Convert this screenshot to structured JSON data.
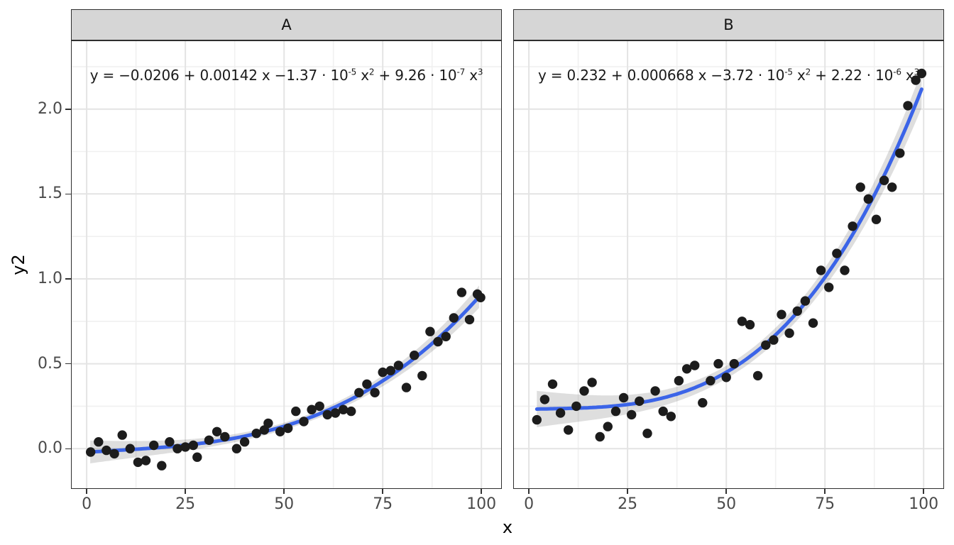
{
  "figure": {
    "background": "#FFFFFF",
    "strip_background": "#D6D6D6",
    "border_color": "#2E2E2E",
    "grid_major_color": "#E4E4E4",
    "grid_minor_color": "#F0F0F0",
    "tick_color": "#333333",
    "tick_label_color": "#4A4A4A",
    "axis_title_color": "#000000",
    "point_color": "#1C1C1C",
    "line_color": "#3B64E8",
    "ribbon_color": "rgba(0,0,0,0.13)",
    "equation_color": "#1A1A1A"
  },
  "chart_data": {
    "type": "scatter",
    "subtype": "faceted scatter with cubic polynomial fit and confidence ribbon",
    "xlabel": "x",
    "ylabel": "y2",
    "x_ticks": [
      0,
      25,
      50,
      75,
      100
    ],
    "x_minor": [
      12.5,
      37.5,
      62.5,
      87.5
    ],
    "y_ticks": [
      0,
      0.5,
      1,
      1.5,
      2
    ],
    "y_tick_labels": [
      "0.0",
      "0.5",
      "1.0",
      "1.5",
      "2.0"
    ],
    "y_minor": [
      0.25,
      0.75,
      1.25,
      1.75,
      2.25
    ],
    "x_domain": [
      -3.8,
      105.0
    ],
    "y_domain": [
      -0.233,
      2.4
    ],
    "grid": true,
    "legend": "none",
    "facets": [
      {
        "label": "A",
        "equation_text": "y = −0.0206 + 0.00142 x −1.37 · 10⁻⁵ x² + 9.26 · 10⁻⁷ x³",
        "equation_parts": [
          {
            "t": "y = −0.0206 + 0.00142 x −1.37 · 10"
          },
          {
            "s": "-5"
          },
          {
            "t": " x"
          },
          {
            "s": "2"
          },
          {
            "t": " + 9.26 · 10"
          },
          {
            "s": "-7"
          },
          {
            "t": " x"
          },
          {
            "s": "3"
          }
        ],
        "fit_coefficients": [
          -0.0206,
          0.00142,
          -1.37e-05,
          9.26e-07
        ],
        "fit_x_range": [
          0.9,
          99.8
        ],
        "ribbon": {
          "base": 0.021,
          "amp": 0.046
        },
        "points": [
          [
            1,
            -0.02
          ],
          [
            3,
            0.04
          ],
          [
            5,
            -0.01
          ],
          [
            7,
            -0.03
          ],
          [
            9,
            0.08
          ],
          [
            11,
            0.0
          ],
          [
            13,
            -0.08
          ],
          [
            15,
            -0.07
          ],
          [
            17,
            0.02
          ],
          [
            19,
            -0.1
          ],
          [
            21,
            0.04
          ],
          [
            23,
            0.0
          ],
          [
            25,
            0.01
          ],
          [
            27,
            0.02
          ],
          [
            28,
            -0.05
          ],
          [
            31,
            0.05
          ],
          [
            33,
            0.1
          ],
          [
            35,
            0.07
          ],
          [
            38,
            0.0
          ],
          [
            40,
            0.04
          ],
          [
            43,
            0.09
          ],
          [
            45,
            0.11
          ],
          [
            46,
            0.15
          ],
          [
            49,
            0.1
          ],
          [
            51,
            0.12
          ],
          [
            53,
            0.22
          ],
          [
            55,
            0.16
          ],
          [
            57,
            0.23
          ],
          [
            59,
            0.25
          ],
          [
            61,
            0.2
          ],
          [
            63,
            0.21
          ],
          [
            65,
            0.23
          ],
          [
            67,
            0.22
          ],
          [
            69,
            0.33
          ],
          [
            71,
            0.38
          ],
          [
            73,
            0.33
          ],
          [
            75,
            0.45
          ],
          [
            77,
            0.46
          ],
          [
            79,
            0.49
          ],
          [
            81,
            0.36
          ],
          [
            83,
            0.55
          ],
          [
            85,
            0.43
          ],
          [
            87,
            0.69
          ],
          [
            89,
            0.63
          ],
          [
            91,
            0.66
          ],
          [
            93,
            0.77
          ],
          [
            95,
            0.92
          ],
          [
            97,
            0.76
          ],
          [
            99,
            0.91
          ],
          [
            99.8,
            0.89
          ]
        ]
      },
      {
        "label": "B",
        "equation_text": "y = 0.232 + 0.000668 x −3.72 · 10⁻⁵ x² + 2.22 · 10⁻⁶ x³",
        "equation_parts": [
          {
            "t": "y = 0.232 + 0.000668 x −3.72 · 10"
          },
          {
            "s": "-5"
          },
          {
            "t": " x"
          },
          {
            "s": "2"
          },
          {
            "t": " + 2.22 · 10"
          },
          {
            "s": "-6"
          },
          {
            "t": " x"
          },
          {
            "s": "3"
          }
        ],
        "fit_coefficients": [
          0.232,
          0.000668,
          -3.72e-05,
          2.22e-06
        ],
        "fit_x_range": [
          2,
          99.7
        ],
        "ribbon": {
          "base": 0.038,
          "amp": 0.072
        },
        "points": [
          [
            2,
            0.17
          ],
          [
            4,
            0.29
          ],
          [
            6,
            0.38
          ],
          [
            8,
            0.21
          ],
          [
            10,
            0.11
          ],
          [
            12,
            0.25
          ],
          [
            14,
            0.34
          ],
          [
            16,
            0.39
          ],
          [
            18,
            0.07
          ],
          [
            20,
            0.13
          ],
          [
            22,
            0.22
          ],
          [
            24,
            0.3
          ],
          [
            26,
            0.2
          ],
          [
            28,
            0.28
          ],
          [
            30,
            0.09
          ],
          [
            32,
            0.34
          ],
          [
            34,
            0.22
          ],
          [
            36,
            0.19
          ],
          [
            38,
            0.4
          ],
          [
            40,
            0.47
          ],
          [
            42,
            0.49
          ],
          [
            44,
            0.27
          ],
          [
            46,
            0.4
          ],
          [
            48,
            0.5
          ],
          [
            50,
            0.42
          ],
          [
            52,
            0.5
          ],
          [
            54,
            0.75
          ],
          [
            56,
            0.73
          ],
          [
            58,
            0.43
          ],
          [
            60,
            0.61
          ],
          [
            62,
            0.64
          ],
          [
            64,
            0.79
          ],
          [
            66,
            0.68
          ],
          [
            68,
            0.81
          ],
          [
            70,
            0.87
          ],
          [
            72,
            0.74
          ],
          [
            74,
            1.05
          ],
          [
            76,
            0.95
          ],
          [
            78,
            1.15
          ],
          [
            80,
            1.05
          ],
          [
            82,
            1.31
          ],
          [
            84,
            1.54
          ],
          [
            86,
            1.47
          ],
          [
            88,
            1.35
          ],
          [
            90,
            1.58
          ],
          [
            92,
            1.54
          ],
          [
            94,
            1.74
          ],
          [
            96,
            2.02
          ],
          [
            98,
            2.17
          ],
          [
            99.5,
            2.21
          ]
        ]
      }
    ]
  }
}
